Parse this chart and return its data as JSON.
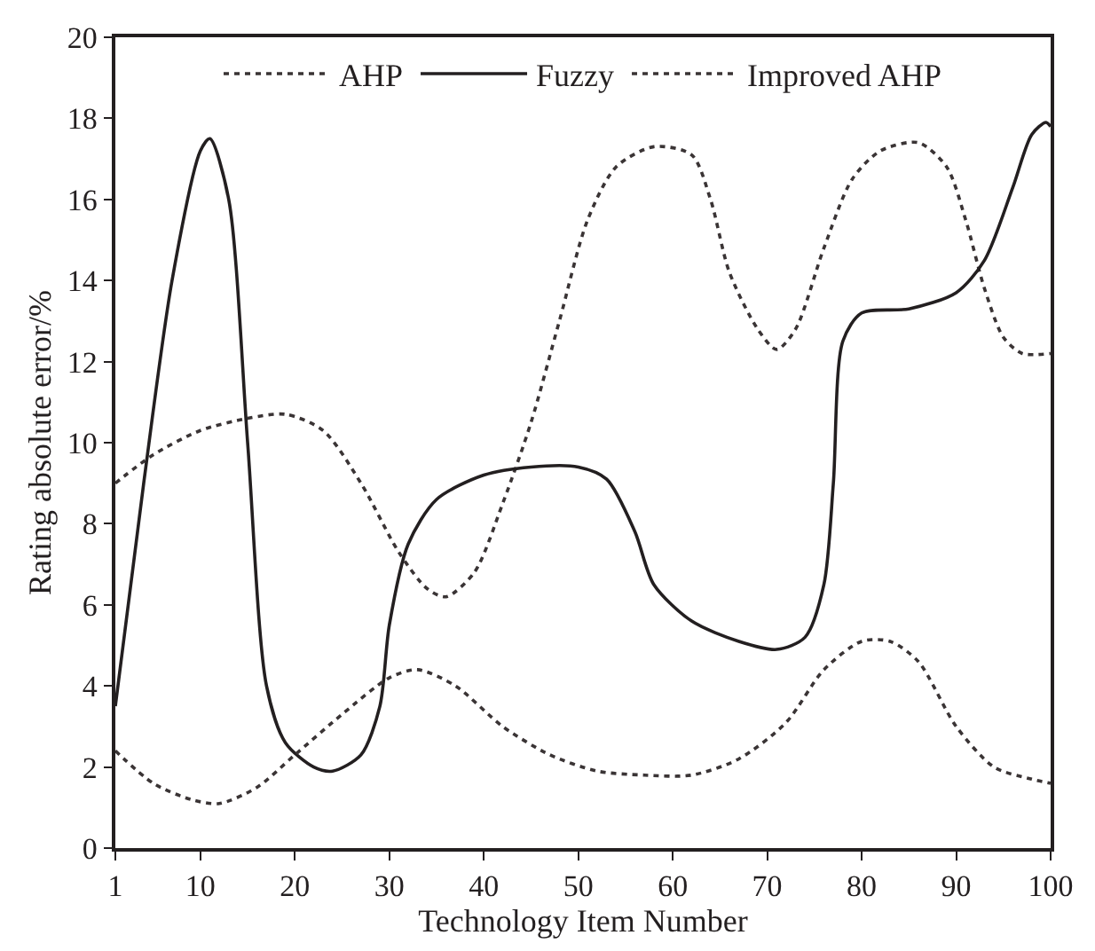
{
  "chart_data": {
    "type": "line",
    "xlabel": "Technology Item Number",
    "ylabel": "Rating absolute error/%",
    "xlim": [
      1,
      100
    ],
    "xticks": [
      1,
      10,
      20,
      30,
      40,
      50,
      60,
      70,
      80,
      90,
      100
    ],
    "ylim": [
      0,
      20
    ],
    "yticks": [
      0,
      2,
      4,
      6,
      8,
      10,
      12,
      14,
      16,
      18,
      20
    ],
    "legend": "top",
    "marker": "none",
    "series": [
      {
        "name": "AHP",
        "color": "#3a3435",
        "line_style": "dotted",
        "x": [
          1,
          5,
          10,
          15,
          19,
          23,
          27,
          31,
          34,
          36,
          39,
          42,
          45,
          48,
          51,
          54,
          58,
          62,
          64,
          66,
          69,
          71,
          73,
          76,
          79,
          82,
          86,
          89,
          91,
          93,
          95,
          97,
          100
        ],
        "values": [
          9.0,
          9.7,
          10.3,
          10.6,
          10.7,
          10.3,
          9.0,
          7.3,
          6.4,
          6.2,
          6.8,
          8.5,
          10.5,
          13.0,
          15.5,
          16.8,
          17.3,
          17.1,
          16.0,
          14.2,
          12.8,
          12.3,
          12.8,
          14.8,
          16.5,
          17.2,
          17.4,
          16.8,
          15.5,
          13.8,
          12.6,
          12.2,
          12.2
        ]
      },
      {
        "name": "Fuzzy",
        "color": "#231f20",
        "line_style": "solid",
        "x": [
          1,
          4,
          7,
          10,
          11,
          13,
          15,
          17,
          19,
          22,
          24,
          27,
          29,
          30,
          32,
          35,
          40,
          45,
          50,
          53,
          56,
          58,
          62,
          67,
          71,
          74,
          76,
          77,
          78,
          80,
          85,
          90,
          93,
          96,
          98,
          99.5,
          100
        ],
        "values": [
          3.5,
          9,
          14,
          17.2,
          17.5,
          16,
          10,
          4,
          2.6,
          2.0,
          1.9,
          2.3,
          3.5,
          5.5,
          7.5,
          8.6,
          9.2,
          9.4,
          9.4,
          9.1,
          7.8,
          6.5,
          5.6,
          5.1,
          4.9,
          5.2,
          6.5,
          9,
          12.5,
          13.2,
          13.3,
          13.7,
          14.5,
          16.3,
          17.6,
          17.9,
          17.8
        ]
      },
      {
        "name": "Improved AHP",
        "color": "#3a3435",
        "line_style": "dotted",
        "x": [
          1,
          5,
          9,
          12,
          16,
          20,
          25,
          30,
          33,
          37,
          42,
          47,
          52,
          57,
          62,
          67,
          72,
          76,
          80,
          83,
          86,
          90,
          94,
          98,
          100
        ],
        "values": [
          2.4,
          1.6,
          1.2,
          1.1,
          1.5,
          2.3,
          3.3,
          4.2,
          4.4,
          4.0,
          3.0,
          2.3,
          1.9,
          1.8,
          1.8,
          2.2,
          3.1,
          4.4,
          5.1,
          5.1,
          4.6,
          3.0,
          2.0,
          1.7,
          1.6
        ]
      }
    ]
  }
}
